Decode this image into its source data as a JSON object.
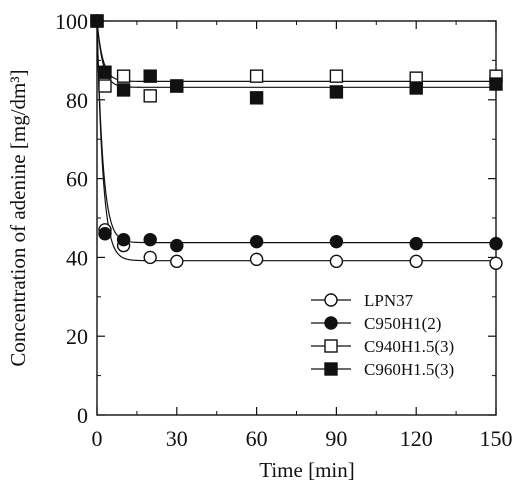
{
  "chart_data": {
    "type": "line",
    "title": "",
    "xlabel": "Time [min]",
    "ylabel": "Concentration of adenine [mg/dm³]",
    "xlim": [
      0,
      150
    ],
    "ylim": [
      0,
      100
    ],
    "x_ticks": [
      0,
      30,
      60,
      90,
      120,
      150
    ],
    "y_ticks": [
      0,
      20,
      40,
      60,
      80,
      100
    ],
    "grid": false,
    "legend_position": "bottom-right",
    "series": [
      {
        "name": "LPN37",
        "marker": "open-circle",
        "x": [
          0,
          3,
          10,
          20,
          30,
          60,
          90,
          120,
          150
        ],
        "y": [
          100,
          47,
          43,
          40,
          39,
          39.5,
          39,
          39,
          38.5
        ]
      },
      {
        "name": "C950H1(2)",
        "marker": "filled-circle",
        "x": [
          0,
          3,
          10,
          20,
          30,
          60,
          90,
          120,
          150
        ],
        "y": [
          100,
          46,
          44.5,
          44.5,
          43,
          44,
          44,
          43.5,
          43.5
        ]
      },
      {
        "name": "C940H1.5(3)",
        "marker": "open-square",
        "x": [
          0,
          3,
          10,
          20,
          30,
          60,
          90,
          120,
          150
        ],
        "y": [
          100,
          83.5,
          86,
          81,
          83.5,
          86,
          86,
          85.5,
          86
        ]
      },
      {
        "name": "C960H1.5(3)",
        "marker": "filled-square",
        "x": [
          0,
          3,
          10,
          20,
          30,
          60,
          90,
          120,
          150
        ],
        "y": [
          100,
          87,
          82.5,
          86,
          83.5,
          80.5,
          82,
          83,
          84
        ]
      }
    ]
  }
}
